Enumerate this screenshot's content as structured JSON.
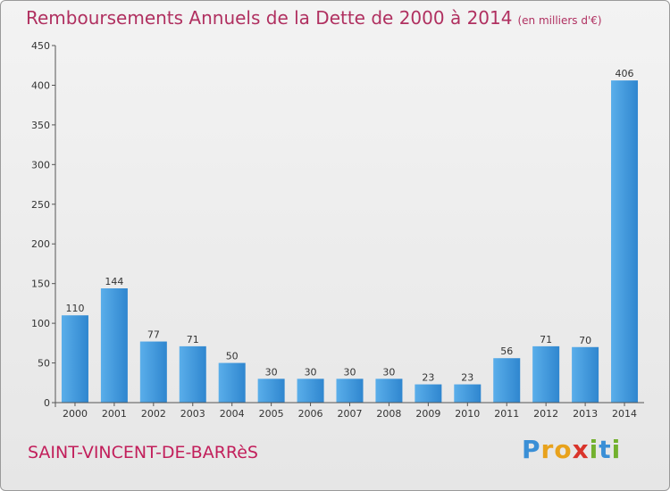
{
  "chart_data": {
    "type": "bar",
    "title": "Remboursements Annuels de la Dette de 2000 à 2014",
    "unit_label": "(en milliers d'€)",
    "categories": [
      "2000",
      "2001",
      "2002",
      "2003",
      "2004",
      "2005",
      "2006",
      "2007",
      "2008",
      "2009",
      "2010",
      "2011",
      "2012",
      "2013",
      "2014"
    ],
    "values": [
      110,
      144,
      77,
      71,
      50,
      30,
      30,
      30,
      30,
      23,
      23,
      56,
      71,
      70,
      406
    ],
    "ylim": [
      0,
      450
    ],
    "yticks": [
      0,
      50,
      100,
      150,
      200,
      250,
      300,
      350,
      400,
      450
    ],
    "grid": false,
    "bar_color": "#3d95dc"
  },
  "footer": {
    "commune": "SAINT-VINCENT-DE-BARRèS",
    "logo_letters": [
      "P",
      "r",
      "o",
      "x",
      "i",
      "t",
      "i"
    ]
  }
}
